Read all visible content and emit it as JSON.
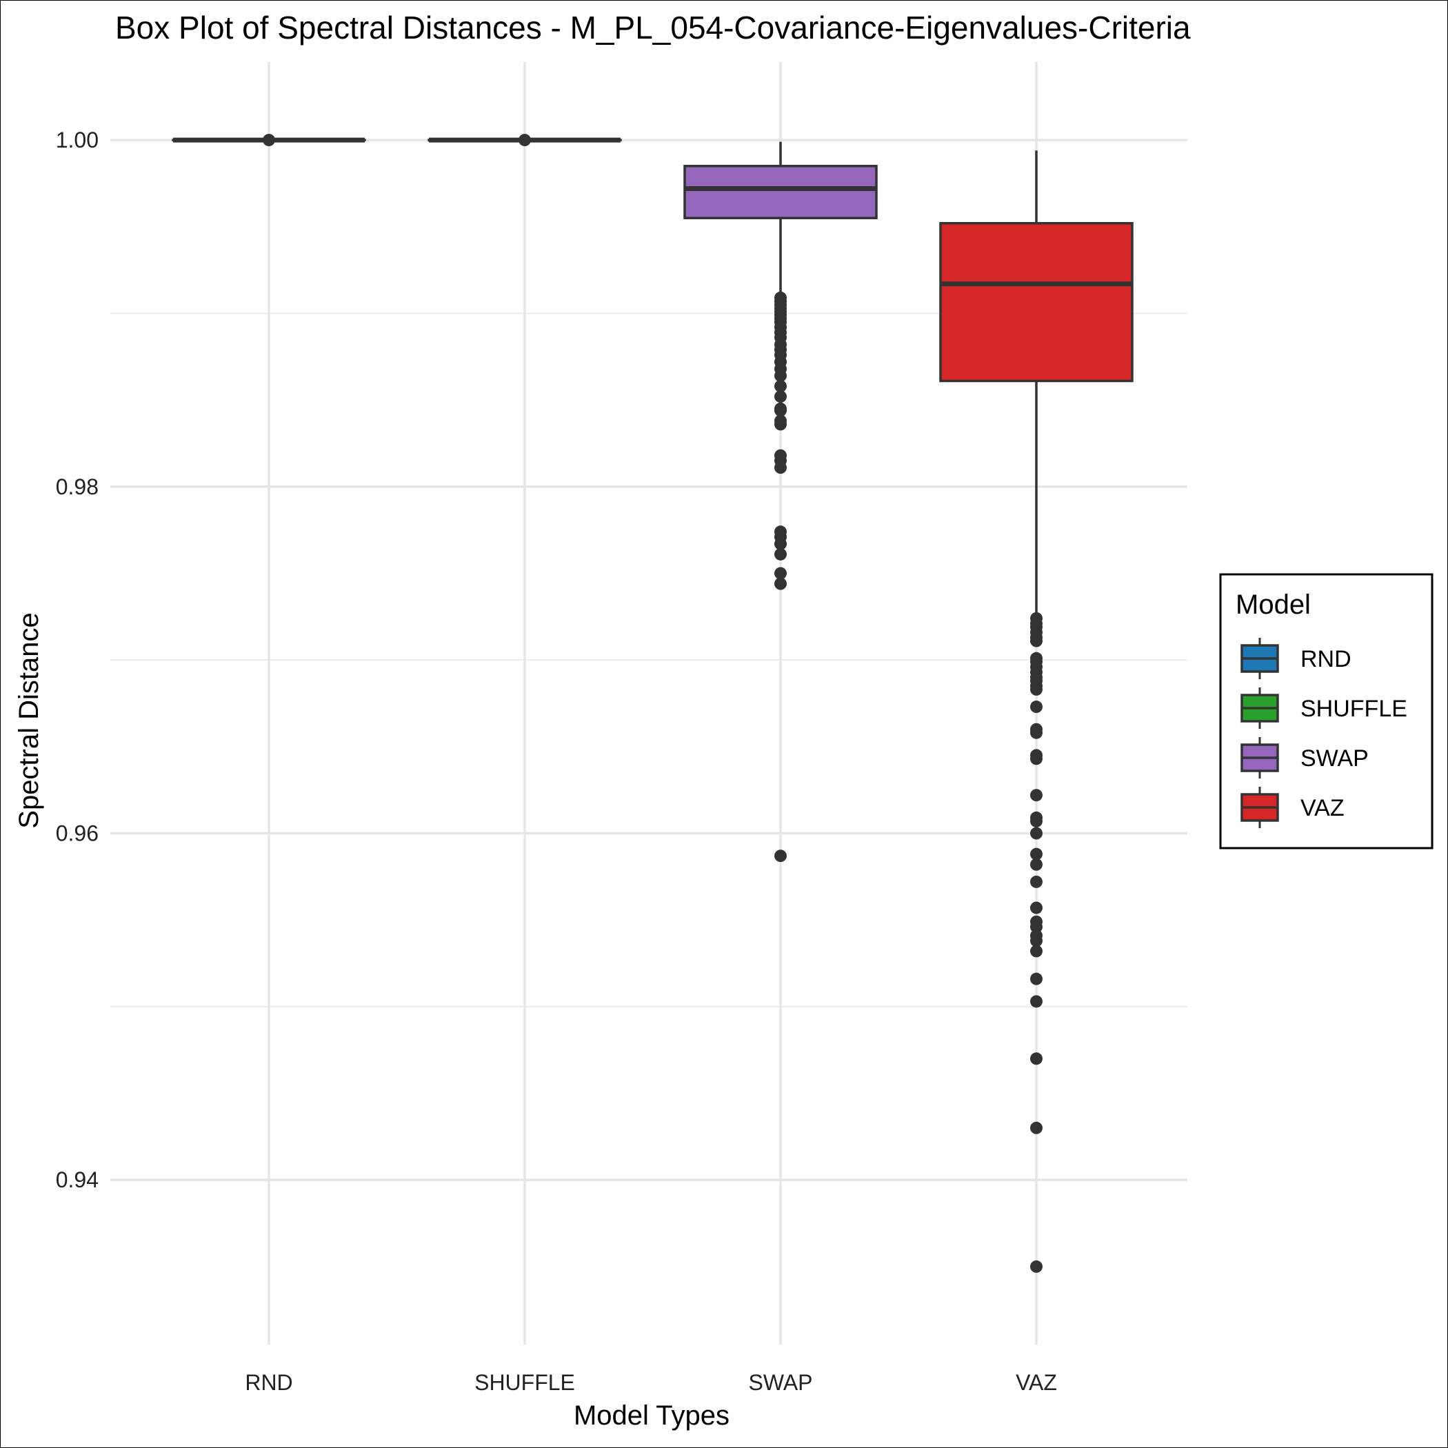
{
  "chart_data": {
    "type": "box",
    "title": "Box Plot of Spectral Distances -  M_PL_054-Covariance-Eigenvalues-Criteria",
    "xlabel": "Model Types",
    "ylabel": "Spectral Distance",
    "categories": [
      "RND",
      "SHUFFLE",
      "SWAP",
      "VAZ"
    ],
    "y_ticks": [
      0.94,
      0.96,
      0.98,
      1.0
    ],
    "y_tick_labels": [
      "0.94",
      "0.96",
      "0.98",
      "1.00"
    ],
    "ylim": [
      0.9305,
      1.0045
    ],
    "grid": true,
    "legend": {
      "title": "Model",
      "placement": "right",
      "entries": [
        "RND",
        "SHUFFLE",
        "SWAP",
        "VAZ"
      ]
    },
    "series": [
      {
        "name": "RND",
        "color": "#1f77b4",
        "whisker_low": 1.0,
        "q1": 1.0,
        "median": 1.0,
        "q3": 1.0,
        "whisker_high": 1.0,
        "outliers": [
          1.0
        ]
      },
      {
        "name": "SHUFFLE",
        "color": "#2ca02c",
        "whisker_low": 1.0,
        "q1": 1.0,
        "median": 1.0,
        "q3": 1.0,
        "whisker_high": 1.0,
        "outliers": [
          1.0
        ]
      },
      {
        "name": "SWAP",
        "color": "#9467bd",
        "whisker_low": 0.991,
        "q1": 0.9955,
        "median": 0.9972,
        "q3": 0.9985,
        "whisker_high": 0.9999,
        "outliers": [
          0.9909,
          0.9907,
          0.9905,
          0.9903,
          0.9901,
          0.9899,
          0.9897,
          0.9895,
          0.9892,
          0.9889,
          0.9886,
          0.9882,
          0.9879,
          0.9876,
          0.9872,
          0.9868,
          0.9864,
          0.9858,
          0.9852,
          0.9845,
          0.9844,
          0.9838,
          0.9836,
          0.9818,
          0.9815,
          0.9811,
          0.9774,
          0.9771,
          0.9767,
          0.9761,
          0.975,
          0.9744,
          0.9587
        ]
      },
      {
        "name": "VAZ",
        "color": "#d62728",
        "whisker_low": 0.9726,
        "q1": 0.9861,
        "median": 0.9917,
        "q3": 0.9952,
        "whisker_high": 0.9994,
        "outliers": [
          0.9724,
          0.9721,
          0.9719,
          0.9716,
          0.9713,
          0.9711,
          0.9701,
          0.9699,
          0.9696,
          0.9693,
          0.969,
          0.9688,
          0.9685,
          0.9683,
          0.9673,
          0.966,
          0.9658,
          0.9645,
          0.9643,
          0.9622,
          0.9609,
          0.9607,
          0.96,
          0.9588,
          0.9582,
          0.9572,
          0.9557,
          0.9549,
          0.9546,
          0.9541,
          0.9538,
          0.9532,
          0.9516,
          0.9503,
          0.947,
          0.943,
          0.935
        ]
      }
    ]
  }
}
